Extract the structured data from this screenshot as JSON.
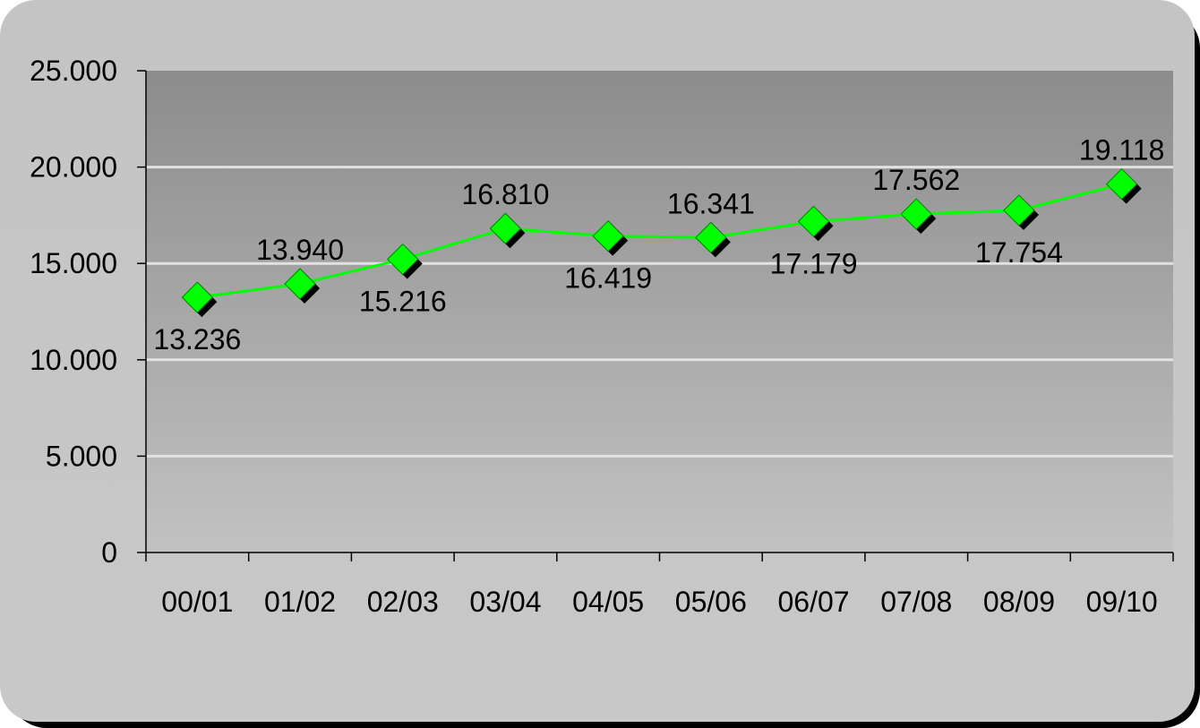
{
  "chart_data": {
    "type": "line",
    "categories": [
      "00/01",
      "01/02",
      "02/03",
      "03/04",
      "04/05",
      "05/06",
      "06/07",
      "07/08",
      "08/09",
      "09/10"
    ],
    "series": [
      {
        "values": [
          13236,
          13940,
          15216,
          16810,
          16419,
          16341,
          17179,
          17562,
          17754,
          19118
        ],
        "labels": [
          "13.236",
          "13.940",
          "15.216",
          "16.810",
          "16.419",
          "16.341",
          "17.179",
          "17.562",
          "17.754",
          "19.118"
        ],
        "label_positions": [
          "below",
          "above",
          "below",
          "above",
          "below",
          "above",
          "below",
          "above",
          "below",
          "above"
        ],
        "color": "#00ff00",
        "marker": "diamond"
      }
    ],
    "ylim": [
      0,
      25000
    ],
    "yticks": [
      0,
      5000,
      10000,
      15000,
      20000,
      25000
    ],
    "ytick_labels": [
      "0",
      "5.000",
      "10.000",
      "15.000",
      "20.000",
      "25.000"
    ],
    "grid": true,
    "legend": "none",
    "title": "",
    "xlabel": "",
    "ylabel": ""
  }
}
